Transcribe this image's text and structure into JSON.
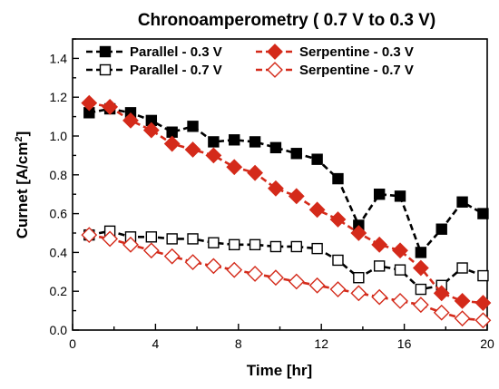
{
  "chart_data": {
    "type": "line",
    "title": "Chronoamperometry ( 0.7 V to 0.3 V)",
    "xlabel": "Time [hr]",
    "ylabel_main": "Curnet [A/cm",
    "ylabel_sup": "2",
    "ylabel_end": "]",
    "xlim": [
      0,
      20
    ],
    "ylim": [
      0,
      1.5
    ],
    "xticks": [
      0,
      4,
      8,
      12,
      16,
      20
    ],
    "yticks": [
      0.0,
      0.2,
      0.4,
      0.6,
      0.8,
      1.0,
      1.2,
      1.4
    ],
    "grid": false,
    "legend_position": "top",
    "series": [
      {
        "name": "Parallel - 0.3 V",
        "color": "#000000",
        "marker": "square",
        "filled": true,
        "x": [
          0.8,
          1.8,
          2.8,
          3.8,
          4.8,
          5.8,
          6.8,
          7.8,
          8.8,
          9.8,
          10.8,
          11.8,
          12.8,
          13.8,
          14.8,
          15.8,
          16.8,
          17.8,
          18.8,
          19.8
        ],
        "y": [
          1.12,
          1.14,
          1.12,
          1.08,
          1.02,
          1.05,
          0.97,
          0.98,
          0.97,
          0.94,
          0.91,
          0.88,
          0.78,
          0.54,
          0.7,
          0.69,
          0.4,
          0.52,
          0.66,
          0.6
        ]
      },
      {
        "name": "Parallel - 0.7 V",
        "color": "#000000",
        "marker": "square",
        "filled": false,
        "x": [
          0.8,
          1.8,
          2.8,
          3.8,
          4.8,
          5.8,
          6.8,
          7.8,
          8.8,
          9.8,
          10.8,
          11.8,
          12.8,
          13.8,
          14.8,
          15.8,
          16.8,
          17.8,
          18.8,
          19.8
        ],
        "y": [
          0.49,
          0.51,
          0.48,
          0.48,
          0.47,
          0.47,
          0.45,
          0.44,
          0.44,
          0.43,
          0.43,
          0.42,
          0.36,
          0.27,
          0.33,
          0.31,
          0.21,
          0.23,
          0.32,
          0.28
        ]
      },
      {
        "name": "Serpentine - 0.3 V",
        "color": "#d42a1a",
        "marker": "diamond",
        "filled": true,
        "x": [
          0.8,
          1.8,
          2.8,
          3.8,
          4.8,
          5.8,
          6.8,
          7.8,
          8.8,
          9.8,
          10.8,
          11.8,
          12.8,
          13.8,
          14.8,
          15.8,
          16.8,
          17.8,
          18.8,
          19.8
        ],
        "y": [
          1.17,
          1.15,
          1.08,
          1.03,
          0.96,
          0.93,
          0.9,
          0.84,
          0.81,
          0.73,
          0.69,
          0.62,
          0.57,
          0.5,
          0.44,
          0.41,
          0.32,
          0.19,
          0.15,
          0.14
        ]
      },
      {
        "name": "Serpentine - 0.7 V",
        "color": "#d42a1a",
        "marker": "diamond",
        "filled": false,
        "x": [
          0.8,
          1.8,
          2.8,
          3.8,
          4.8,
          5.8,
          6.8,
          7.8,
          8.8,
          9.8,
          10.8,
          11.8,
          12.8,
          13.8,
          14.8,
          15.8,
          16.8,
          17.8,
          18.8,
          19.8
        ],
        "y": [
          0.49,
          0.47,
          0.44,
          0.41,
          0.38,
          0.35,
          0.33,
          0.31,
          0.29,
          0.27,
          0.25,
          0.23,
          0.21,
          0.19,
          0.17,
          0.15,
          0.13,
          0.09,
          0.06,
          0.05
        ]
      }
    ]
  }
}
